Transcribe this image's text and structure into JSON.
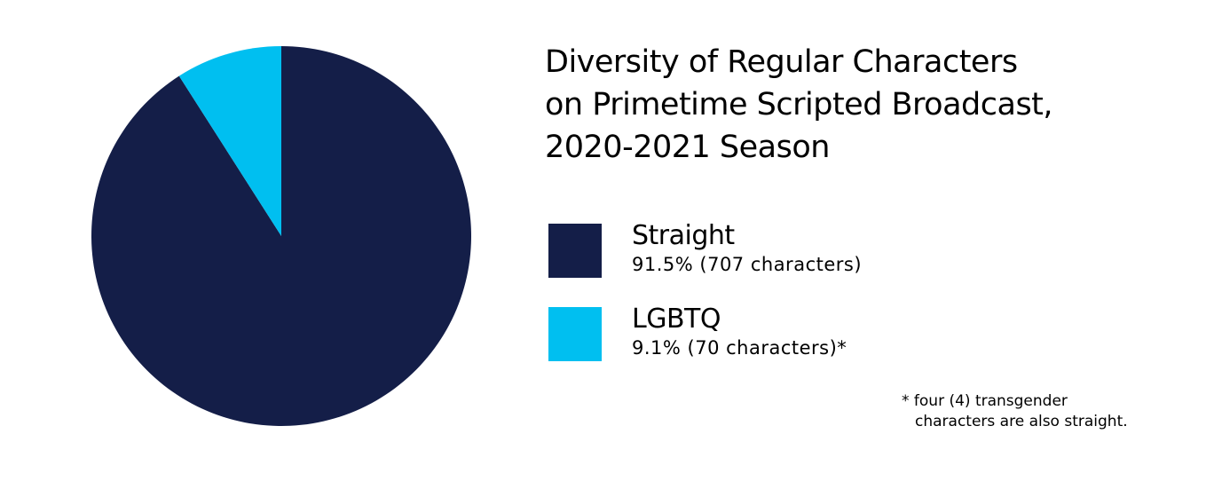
{
  "chart_data": {
    "type": "pie",
    "title": "Diversity of Regular Characters on Primetime Scripted Broadcast, 2020-2021 Season",
    "title_lines": [
      "Diversity of Regular Characters",
      "on Primetime Scripted Broadcast,",
      "2020-2021 Season"
    ],
    "categories": [
      "Straight",
      "LGBTQ"
    ],
    "values": [
      91.5,
      9.1
    ],
    "counts": [
      707,
      70
    ],
    "colors": [
      "#141e48",
      "#00bff0"
    ],
    "legend": [
      {
        "label": "Straight",
        "value_text": "91.5% (707 characters)",
        "color": "#141e48"
      },
      {
        "label": "LGBTQ",
        "value_text": "9.1% (70 characters)*",
        "color": "#00bff0"
      }
    ],
    "legend_position": "right",
    "annotations": [
      "* four (4) transgender",
      "characters are also straight."
    ]
  },
  "footnote": {
    "line1": "* four (4) transgender",
    "line2": "characters are also straight."
  }
}
